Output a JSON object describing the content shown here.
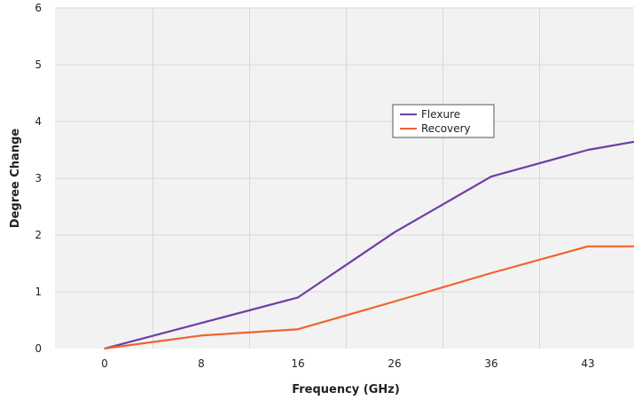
{
  "chart_data": {
    "type": "line",
    "categories": [
      "0",
      "8",
      "16",
      "26",
      "36",
      "43",
      ""
    ],
    "xlabel": "Frequency (GHz)",
    "ylabel": "Degree Change",
    "ylim": [
      0,
      6
    ],
    "yticks": [
      "0",
      "1",
      "2",
      "3",
      "4",
      "5",
      "6"
    ],
    "grid": true,
    "legend_position": "center-right",
    "series": [
      {
        "name": "Flexure",
        "color": "#6e3fa3",
        "values": [
          0,
          0.45,
          0.9,
          2.05,
          3.03,
          3.5,
          3.8
        ]
      },
      {
        "name": "Recovery",
        "color": "#f2622e",
        "values": [
          0,
          0.23,
          0.34,
          0.83,
          1.33,
          1.8,
          1.8
        ]
      }
    ]
  }
}
